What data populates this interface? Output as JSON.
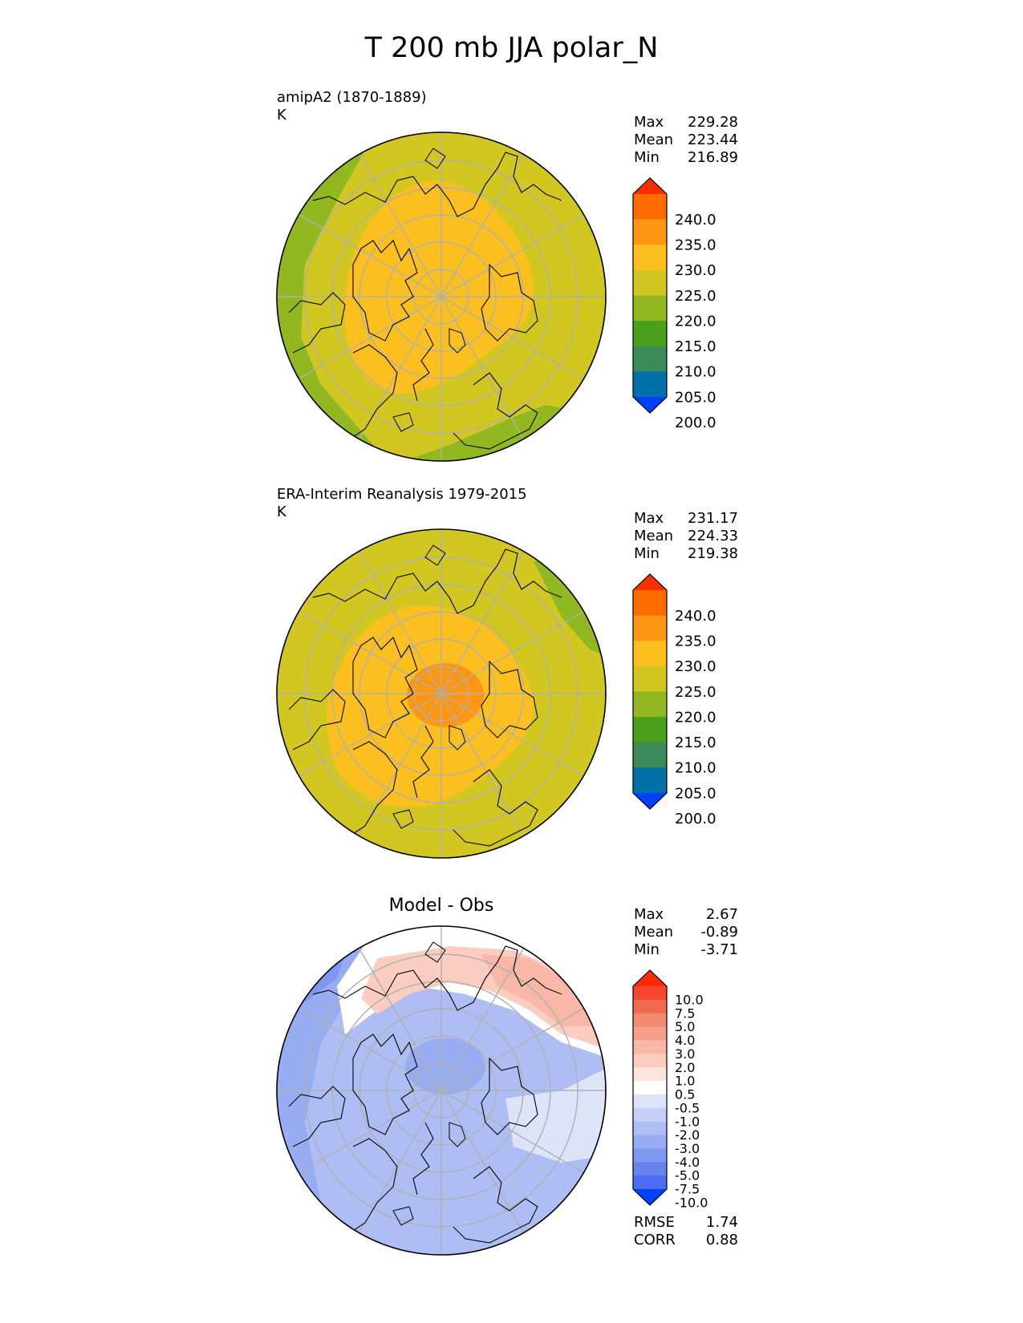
{
  "title": "T 200 mb JJA polar_N",
  "panels": [
    {
      "label": "amipA2 (1870-1889)",
      "units": "K",
      "stats": {
        "max_label": "Max",
        "max": "229.28",
        "mean_label": "Mean",
        "mean": "223.44",
        "min_label": "Min",
        "min": "216.89"
      },
      "colorbar": {
        "ticks": [
          "240.0",
          "235.0",
          "230.0",
          "225.0",
          "220.0",
          "215.0",
          "210.0",
          "205.0",
          "200.0"
        ],
        "colors": [
          "#fd2d00",
          "#fd6c00",
          "#fd9612",
          "#fbc020",
          "#d2c620",
          "#91b820",
          "#4aa01a",
          "#3a8a5a",
          "#0070a8",
          "#0040fe"
        ]
      }
    },
    {
      "label": "ERA-Interim Reanalysis 1979-2015",
      "units": "K",
      "stats": {
        "max_label": "Max",
        "max": "231.17",
        "mean_label": "Mean",
        "mean": "224.33",
        "min_label": "Min",
        "min": "219.38"
      },
      "colorbar": {
        "ticks": [
          "240.0",
          "235.0",
          "230.0",
          "225.0",
          "220.0",
          "215.0",
          "210.0",
          "205.0",
          "200.0"
        ],
        "colors": [
          "#fd2d00",
          "#fd6c00",
          "#fd9612",
          "#fbc020",
          "#d2c620",
          "#91b820",
          "#4aa01a",
          "#3a8a5a",
          "#0070a8",
          "#0040fe"
        ]
      }
    },
    {
      "title": "Model - Obs",
      "stats": {
        "max_label": "Max",
        "max": "2.67",
        "mean_label": "Mean",
        "mean": "-0.89",
        "min_label": "Min",
        "min": "-3.71"
      },
      "metrics": {
        "rmse_label": "RMSE",
        "rmse": "1.74",
        "corr_label": "CORR",
        "corr": "0.88"
      },
      "colorbar": {
        "ticks": [
          "10.0",
          "7.5",
          "5.0",
          "4.0",
          "3.0",
          "2.0",
          "1.0",
          "0.5",
          "-0.5",
          "-1.0",
          "-2.0",
          "-3.0",
          "-4.0",
          "-5.0",
          "-7.5",
          "-10.0"
        ],
        "colors": [
          "#fd2d00",
          "#f5472e",
          "#f26a4f",
          "#f48a72",
          "#f5a08c",
          "#f8b7a7",
          "#facdc0",
          "#fde4dc",
          "#ffffff",
          "#dde4fa",
          "#c5d0f7",
          "#aebef4",
          "#98acf2",
          "#7f98f0",
          "#6783ee",
          "#4d6cf2",
          "#0040fe"
        ]
      }
    }
  ]
}
